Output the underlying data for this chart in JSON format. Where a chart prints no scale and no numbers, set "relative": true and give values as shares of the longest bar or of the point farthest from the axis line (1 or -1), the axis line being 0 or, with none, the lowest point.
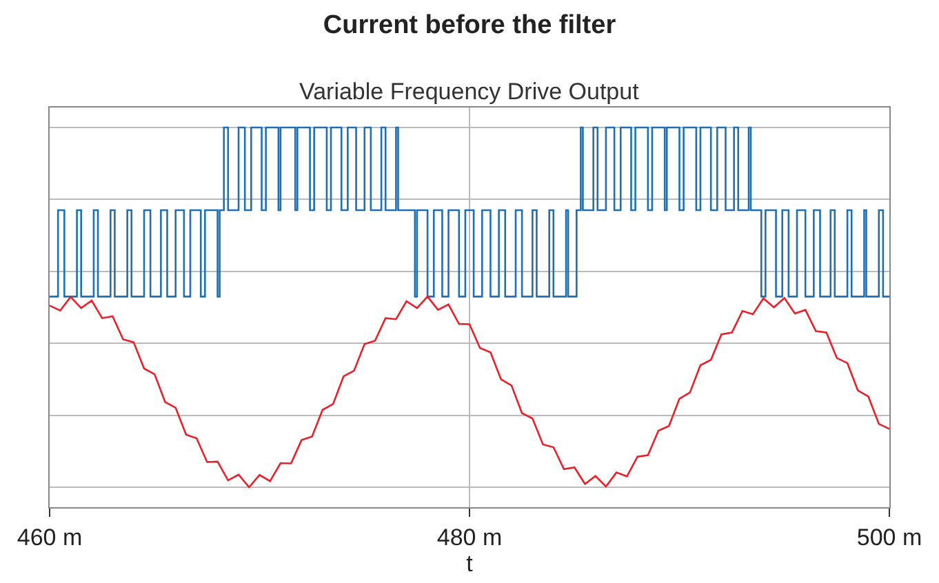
{
  "chart_data": {
    "type": "line",
    "title": "Current before the filter",
    "subtitle": "Variable Frequency Drive Output",
    "xlabel": "t",
    "relative": true,
    "grid": true,
    "xlim": [
      460,
      500
    ],
    "xticks": [
      {
        "value": 460,
        "label": "460 m"
      },
      {
        "value": 480,
        "label": "480 m"
      },
      {
        "value": 500,
        "label": "500 m"
      }
    ],
    "series": [
      {
        "type": "step",
        "color": "#1f6fb4",
        "x": [
          460.0,
          460.4,
          460.7,
          461.3,
          461.5,
          462.1,
          462.3,
          462.9,
          463.1,
          463.7,
          463.9,
          464.5,
          464.8,
          465.3,
          465.6,
          466.0,
          466.4,
          466.7,
          467.2,
          467.4,
          468.0,
          468.1,
          468.3,
          468.5,
          469.0,
          469.3,
          469.6,
          470.1,
          470.3,
          470.9,
          471.0,
          471.7,
          471.8,
          472.4,
          472.6,
          473.2,
          473.4,
          473.9,
          474.2,
          474.6,
          475.0,
          475.3,
          475.8,
          476.0,
          476.5,
          476.6,
          477.4,
          477.5,
          478.0,
          478.3,
          478.7,
          479.0,
          479.5,
          479.8,
          480.2,
          480.6,
          481.0,
          481.4,
          481.7,
          482.2,
          482.5,
          483.0,
          483.2,
          483.8,
          484.0,
          484.6,
          484.7,
          485.1,
          485.3,
          485.4,
          485.9,
          486.1,
          486.5,
          486.9,
          487.2,
          487.7,
          487.9,
          488.5,
          488.7,
          489.3,
          489.4,
          490.0,
          490.2,
          490.8,
          491.0,
          491.5,
          491.8,
          492.2,
          492.6,
          492.8,
          493.3,
          493.4,
          493.9,
          494.1,
          494.6,
          494.9,
          495.2,
          495.6,
          496.0,
          496.4,
          496.7,
          497.2,
          497.4,
          498.0,
          498.2,
          498.8,
          498.9,
          499.5,
          499.7,
          500.0
        ],
        "values": [
          0.53,
          0.77,
          0.53,
          0.77,
          0.53,
          0.77,
          0.53,
          0.77,
          0.53,
          0.77,
          0.53,
          0.77,
          0.53,
          0.77,
          0.53,
          0.77,
          0.53,
          0.77,
          0.53,
          0.77,
          0.53,
          0.77,
          1,
          0.77,
          1,
          0.77,
          1,
          0.77,
          1,
          0.77,
          1,
          0.77,
          1,
          0.77,
          1,
          0.77,
          1,
          0.77,
          1,
          0.77,
          1,
          0.77,
          1,
          0.77,
          1,
          0.77,
          0.53,
          0.77,
          0.53,
          0.77,
          0.53,
          0.77,
          0.53,
          0.77,
          0.53,
          0.77,
          0.53,
          0.77,
          0.53,
          0.77,
          0.53,
          0.77,
          0.53,
          0.77,
          0.53,
          0.77,
          0.53,
          0.77,
          1,
          0.77,
          1,
          0.77,
          1,
          0.77,
          1,
          0.77,
          1,
          0.77,
          1,
          0.77,
          1,
          0.77,
          1,
          0.77,
          1,
          0.77,
          1,
          0.77,
          1,
          0.77,
          1,
          0.77,
          0.53,
          0.77,
          0.53,
          0.77,
          0.53,
          0.77,
          0.53,
          0.77,
          0.53,
          0.77,
          0.53,
          0.77,
          0.53,
          0.77,
          0.53,
          0.77,
          0.53,
          0.53
        ]
      },
      {
        "color": "#e8202a",
        "x": [
          460.0,
          460.5,
          461.0,
          461.5,
          462.0,
          462.5,
          463.0,
          463.5,
          464.0,
          464.5,
          465.0,
          465.5,
          466.0,
          466.5,
          467.0,
          467.5,
          468.0,
          468.5,
          469.0,
          469.5,
          470.0,
          470.5,
          471.0,
          471.5,
          472.0,
          472.5,
          473.0,
          473.5,
          474.0,
          474.5,
          475.0,
          475.5,
          476.0,
          476.5,
          477.0,
          477.5,
          478.0,
          478.5,
          479.0,
          479.5,
          480.0,
          480.5,
          481.0,
          481.5,
          482.0,
          482.5,
          483.0,
          483.5,
          484.0,
          484.5,
          485.0,
          485.5,
          486.0,
          486.5,
          487.0,
          487.5,
          488.0,
          488.5,
          489.0,
          489.5,
          490.0,
          490.5,
          491.0,
          491.5,
          492.0,
          492.5,
          493.0,
          493.5,
          494.0,
          494.5,
          495.0,
          495.5,
          496.0,
          496.5,
          497.0,
          497.5,
          498.0,
          498.5,
          499.0,
          499.5,
          500.0
        ],
        "values": [
          0.505,
          0.491,
          0.529,
          0.498,
          0.519,
          0.47,
          0.475,
          0.411,
          0.403,
          0.33,
          0.314,
          0.237,
          0.221,
          0.146,
          0.136,
          0.07,
          0.071,
          0.019,
          0.035,
          0.0,
          0.034,
          0.017,
          0.067,
          0.066,
          0.131,
          0.141,
          0.215,
          0.231,
          0.308,
          0.324,
          0.398,
          0.407,
          0.47,
          0.467,
          0.517,
          0.498,
          0.53,
          0.493,
          0.508,
          0.454,
          0.453,
          0.387,
          0.375,
          0.3,
          0.283,
          0.206,
          0.191,
          0.119,
          0.111,
          0.05,
          0.055,
          0.009,
          0.031,
          0.002,
          0.041,
          0.03,
          0.085,
          0.089,
          0.157,
          0.17,
          0.246,
          0.263,
          0.339,
          0.354,
          0.425,
          0.43,
          0.49,
          0.481,
          0.525,
          0.5,
          0.526,
          0.483,
          0.493,
          0.434,
          0.43,
          0.359,
          0.345,
          0.269,
          0.252,
          0.176,
          0.162
        ]
      }
    ]
  }
}
